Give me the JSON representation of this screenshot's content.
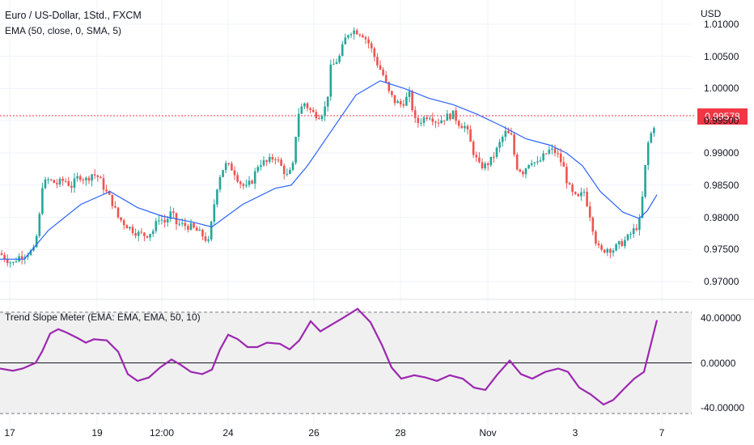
{
  "header": {
    "symbol_title": "Euro / US-Dollar, 1Std., FXCM",
    "indicator_label": "EMA (50, close, 0, SMA, 5)",
    "currency": "USD",
    "last_price": "0.99578"
  },
  "oscillator": {
    "title": "Trend Slope Meter (EMA: EMA, EMA, 50, 10)"
  },
  "colors": {
    "bull": "#26a69a",
    "bear": "#ef5350",
    "ema": "#2962ff",
    "oscillator": "#9c27b0",
    "price_line": "#f23645",
    "grid": "#f0f3fa"
  },
  "chart_data": [
    {
      "type": "candlestick",
      "x_ticks": [
        "17",
        "19",
        "12:00",
        "24",
        "26",
        "28",
        "Nov",
        "3",
        "7"
      ],
      "y_ticks": [
        "0.97000",
        "0.97500",
        "0.98000",
        "0.98500",
        "0.99000",
        "0.99500",
        "1.00000",
        "1.00500",
        "1.01000"
      ],
      "ylim": [
        0.9675,
        1.0125
      ],
      "last_price": 0.99578,
      "close_path": [
        [
          0,
          0.9744
        ],
        [
          8,
          0.9735
        ],
        [
          16,
          0.9728
        ],
        [
          22,
          0.9738
        ],
        [
          34,
          0.9745
        ],
        [
          42,
          0.9748
        ],
        [
          48,
          0.979
        ],
        [
          52,
          0.985
        ],
        [
          60,
          0.9858
        ],
        [
          70,
          0.9852
        ],
        [
          80,
          0.9858
        ],
        [
          88,
          0.9848
        ],
        [
          98,
          0.9865
        ],
        [
          106,
          0.9858
        ],
        [
          114,
          0.9868
        ],
        [
          122,
          0.9862
        ],
        [
          130,
          0.9842
        ],
        [
          138,
          0.9825
        ],
        [
          146,
          0.98
        ],
        [
          154,
          0.979
        ],
        [
          162,
          0.9782
        ],
        [
          170,
          0.9775
        ],
        [
          180,
          0.9772
        ],
        [
          190,
          0.978
        ],
        [
          196,
          0.98
        ],
        [
          204,
          0.9792
        ],
        [
          212,
          0.9808
        ],
        [
          218,
          0.979
        ],
        [
          226,
          0.9788
        ],
        [
          236,
          0.9785
        ],
        [
          244,
          0.9778
        ],
        [
          252,
          0.977
        ],
        [
          258,
          0.976
        ],
        [
          264,
          0.9815
        ],
        [
          270,
          0.986
        ],
        [
          278,
          0.9882
        ],
        [
          288,
          0.9875
        ],
        [
          296,
          0.9855
        ],
        [
          304,
          0.9845
        ],
        [
          312,
          0.9858
        ],
        [
          320,
          0.9885
        ],
        [
          330,
          0.9885
        ],
        [
          340,
          0.9895
        ],
        [
          348,
          0.9878
        ],
        [
          356,
          0.9862
        ],
        [
          362,
          0.988
        ],
        [
          368,
          0.996
        ],
        [
          376,
          0.9978
        ],
        [
          386,
          0.9962
        ],
        [
          396,
          0.9958
        ],
        [
          404,
          0.9975
        ],
        [
          408,
          1.003
        ],
        [
          414,
          1.004
        ],
        [
          420,
          1.005
        ],
        [
          426,
          1.0075
        ],
        [
          432,
          1.009
        ],
        [
          440,
          1.009
        ],
        [
          448,
          1.0085
        ],
        [
          456,
          1.007
        ],
        [
          466,
          1.004
        ],
        [
          474,
          1.002
        ],
        [
          480,
          0.9995
        ],
        [
          488,
          0.998
        ],
        [
          496,
          0.9975
        ],
        [
          506,
          0.999
        ],
        [
          514,
          0.9945
        ],
        [
          522,
          0.9952
        ],
        [
          530,
          0.996
        ],
        [
          540,
          0.9948
        ],
        [
          550,
          0.9955
        ],
        [
          560,
          0.996
        ],
        [
          568,
          0.9945
        ],
        [
          576,
          0.994
        ],
        [
          584,
          0.9905
        ],
        [
          592,
          0.988
        ],
        [
          600,
          0.988
        ],
        [
          608,
          0.989
        ],
        [
          616,
          0.991
        ],
        [
          624,
          0.9932
        ],
        [
          632,
          0.9925
        ],
        [
          638,
          0.988
        ],
        [
          646,
          0.987
        ],
        [
          656,
          0.989
        ],
        [
          664,
          0.9882
        ],
        [
          672,
          0.9895
        ],
        [
          680,
          0.9905
        ],
        [
          688,
          0.99
        ],
        [
          696,
          0.988
        ],
        [
          702,
          0.985
        ],
        [
          708,
          0.9835
        ],
        [
          714,
          0.9828
        ],
        [
          722,
          0.984
        ],
        [
          730,
          0.98
        ],
        [
          736,
          0.9765
        ],
        [
          742,
          0.9745
        ],
        [
          750,
          0.9752
        ],
        [
          758,
          0.975
        ],
        [
          766,
          0.9758
        ],
        [
          774,
          0.9765
        ],
        [
          782,
          0.9778
        ],
        [
          790,
          0.979
        ],
        [
          794,
          0.983
        ],
        [
          800,
          0.991
        ],
        [
          806,
          0.9935
        ],
        [
          812,
          0.9955
        ]
      ],
      "ema_path": [
        [
          0,
          0.9735
        ],
        [
          30,
          0.9735
        ],
        [
          60,
          0.978
        ],
        [
          100,
          0.982
        ],
        [
          136,
          0.984
        ],
        [
          170,
          0.9815
        ],
        [
          200,
          0.9802
        ],
        [
          240,
          0.9792
        ],
        [
          262,
          0.9785
        ],
        [
          300,
          0.982
        ],
        [
          340,
          0.9845
        ],
        [
          360,
          0.985
        ],
        [
          380,
          0.988
        ],
        [
          410,
          0.9935
        ],
        [
          440,
          0.999
        ],
        [
          470,
          1.0012
        ],
        [
          500,
          1.0
        ],
        [
          530,
          0.9985
        ],
        [
          560,
          0.9975
        ],
        [
          590,
          0.996
        ],
        [
          620,
          0.9942
        ],
        [
          650,
          0.9922
        ],
        [
          680,
          0.9912
        ],
        [
          700,
          0.99
        ],
        [
          720,
          0.988
        ],
        [
          742,
          0.984
        ],
        [
          770,
          0.9808
        ],
        [
          790,
          0.9798
        ],
        [
          800,
          0.981
        ],
        [
          812,
          0.9835
        ]
      ]
    },
    {
      "type": "line",
      "title": "Trend Slope Meter (EMA: EMA, EMA, 50, 10)",
      "y_ticks": [
        "40.00000",
        "0.00000",
        "-40.00000"
      ],
      "ylim": [
        -55,
        55
      ],
      "band": [
        -45,
        45
      ],
      "series": [
        {
          "values": [
            [
              0,
              -5
            ],
            [
              16,
              -7
            ],
            [
              28,
              -5
            ],
            [
              44,
              0
            ],
            [
              52,
              10
            ],
            [
              62,
              26
            ],
            [
              72,
              30
            ],
            [
              82,
              27
            ],
            [
              96,
              22
            ],
            [
              106,
              18
            ],
            [
              116,
              21
            ],
            [
              132,
              20
            ],
            [
              146,
              10
            ],
            [
              158,
              -10
            ],
            [
              170,
              -16
            ],
            [
              184,
              -13
            ],
            [
              198,
              -4
            ],
            [
              212,
              3
            ],
            [
              224,
              -2
            ],
            [
              236,
              -8
            ],
            [
              250,
              -10
            ],
            [
              262,
              -6
            ],
            [
              272,
              12
            ],
            [
              282,
              25
            ],
            [
              294,
              21
            ],
            [
              306,
              14
            ],
            [
              318,
              14
            ],
            [
              330,
              18
            ],
            [
              346,
              17
            ],
            [
              358,
              12
            ],
            [
              370,
              20
            ],
            [
              384,
              37
            ],
            [
              396,
              28
            ],
            [
              410,
              34
            ],
            [
              424,
              40
            ],
            [
              442,
              48
            ],
            [
              458,
              36
            ],
            [
              472,
              16
            ],
            [
              484,
              -4
            ],
            [
              496,
              -14
            ],
            [
              512,
              -11
            ],
            [
              526,
              -13
            ],
            [
              540,
              -16
            ],
            [
              556,
              -11
            ],
            [
              572,
              -14
            ],
            [
              586,
              -22
            ],
            [
              600,
              -24
            ],
            [
              614,
              -11
            ],
            [
              630,
              2
            ],
            [
              644,
              -10
            ],
            [
              658,
              -14
            ],
            [
              674,
              -8
            ],
            [
              690,
              -5
            ],
            [
              702,
              -8
            ],
            [
              716,
              -22
            ],
            [
              730,
              -28
            ],
            [
              746,
              -37
            ],
            [
              758,
              -33
            ],
            [
              770,
              -24
            ],
            [
              784,
              -14
            ],
            [
              796,
              -8
            ],
            [
              812,
              38
            ]
          ]
        }
      ]
    }
  ]
}
